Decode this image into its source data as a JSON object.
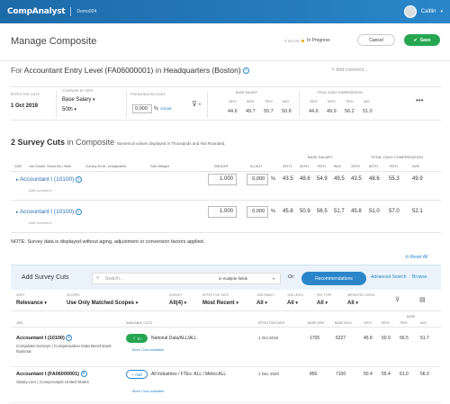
{
  "topbar": {
    "logo": "CompAnalyst",
    "env": "Demo004",
    "user_name": "Caitlin"
  },
  "header": {
    "title": "Manage Composite",
    "status_label": "STATUS",
    "status_value": "In Progress",
    "cancel_label": "Cancel",
    "save_label": "Save",
    "status_color": "#f0a500"
  },
  "job": {
    "prefix": "For",
    "name": "Accountant Entry Level (FA06000001)",
    "in_word": "in",
    "location": "Headquarters (Boston)",
    "add_comment": "Add comment..."
  },
  "params": {
    "effective_date_label": "EFFECTIVE DATE",
    "effective_date": "1 Oct 2019",
    "compare_label": "COMPARE BY MRP",
    "compare_value": "Base Salary",
    "compare_pct": "50th",
    "premium_label": "PREMIUM/DISCOUNT",
    "premium_value": "0,000",
    "premium_unit": "%",
    "actual_link": "Actual",
    "base_salary_label": "BASE SALARY",
    "tcc_label": "TOTAL CASH COMPENSATION",
    "pct_heads": [
      "25TH",
      "50TH",
      "75TH",
      "AVG"
    ],
    "base_values": [
      "44.6",
      "49.7",
      "55.7",
      "50.8"
    ],
    "tcc_values": [
      "44.6",
      "49.9",
      "56.2",
      "51.0"
    ]
  },
  "cuts_section": {
    "count_title": "2 Survey Cuts",
    "in_composite": "in Composite",
    "note": "Numerical values displayed in Thousands and Not Rounded.",
    "col_job": "JOB",
    "col_job_detail": "Job Detail: Show All | Hide",
    "col_sort": "Sort Weight",
    "col_survey_error": "Survey Error: Unadjusted",
    "col_weight": "WEIGHT",
    "col_aj_adj": "AJ ADJ",
    "base_salary_label": "BASE SALARY",
    "tcc_label": "TOTAL CASH COMPENSATION",
    "pct_heads": [
      "25TH",
      "50TH",
      "75TH",
      "AVG",
      "25TH",
      "50TH",
      "75TH",
      "AVG"
    ],
    "rows": [
      {
        "name": "Accountant I (10100)",
        "comment": "Add comment...",
        "weight": "1.000",
        "adj": "0,000",
        "unit": "%",
        "values": [
          "43.5",
          "48.6",
          "54.9",
          "49.5",
          "43.5",
          "48.6",
          "55.3",
          "49.9"
        ]
      },
      {
        "name": "Accountant I (10100)",
        "comment": "Add comment...",
        "weight": "1.000",
        "adj": "0,000",
        "unit": "%",
        "values": [
          "45.8",
          "50.9",
          "56.5",
          "51.7",
          "45.8",
          "51.0",
          "57.0",
          "52.1"
        ]
      }
    ]
  },
  "note_text": "NOTE: Survey data is displayed without aging, adjustment or conversion factors applied.",
  "reset_all": "Reset All",
  "add_panel": {
    "title": "Add Survey Cuts",
    "search_placeholder": "Search...",
    "search_field": "in multiple fields",
    "or_label": "Or:",
    "recommendations": "Recommendations",
    "advanced_search": "Advanced Search",
    "browse": "Browse",
    "filters": [
      {
        "label": "SORT",
        "value": "Relevance"
      },
      {
        "label": "SCOPES",
        "value": "Use Only Matched Scopes"
      },
      {
        "label": "SURVEY",
        "value": "All(4)"
      },
      {
        "label": "EFFECTIVE DATE",
        "value": "Most Recent"
      },
      {
        "label": "JOB FAMILY",
        "value": "All"
      },
      {
        "label": "JOB LEVEL",
        "value": "All"
      },
      {
        "label": "PAY TYPE",
        "value": "All"
      },
      {
        "label": "WEIGHTED ORGS",
        "value": "All"
      }
    ],
    "col_job": "JOB",
    "col_cuts": "AVAILABLE CUTS",
    "col_date": "EFFECTIVE DATE",
    "col_orgs": "BASE ORG",
    "col_incs": "BASE INCS",
    "col_base": "BASE",
    "pct_heads": [
      "25TH",
      "50TH",
      "75TH",
      "AVG"
    ],
    "results": [
      {
        "job": "Accountant I (10100)",
        "source": "Compdata Surveys | Compensation Data Benchmark National",
        "toggle": "In",
        "cut": "National Data/ALL/ALL",
        "more": "More Cuts available",
        "date": "1 Oct 2019",
        "orgs": "1705",
        "incs": "6227",
        "values": [
          "45.8",
          "50.9",
          "56.5",
          "51.7"
        ]
      },
      {
        "job": "Accountant I (FA06000001)",
        "source": "Salary.com | CompAnalyst United States",
        "toggle": "Add",
        "cut": "All Industries / FTEs: ALL / Metro:ALL",
        "more": "More Cuts available",
        "date": "1 Dec 2020",
        "orgs": "850",
        "incs": "7100",
        "values": [
          "50.4",
          "55.4",
          "61.0",
          "56.0"
        ]
      }
    ]
  }
}
